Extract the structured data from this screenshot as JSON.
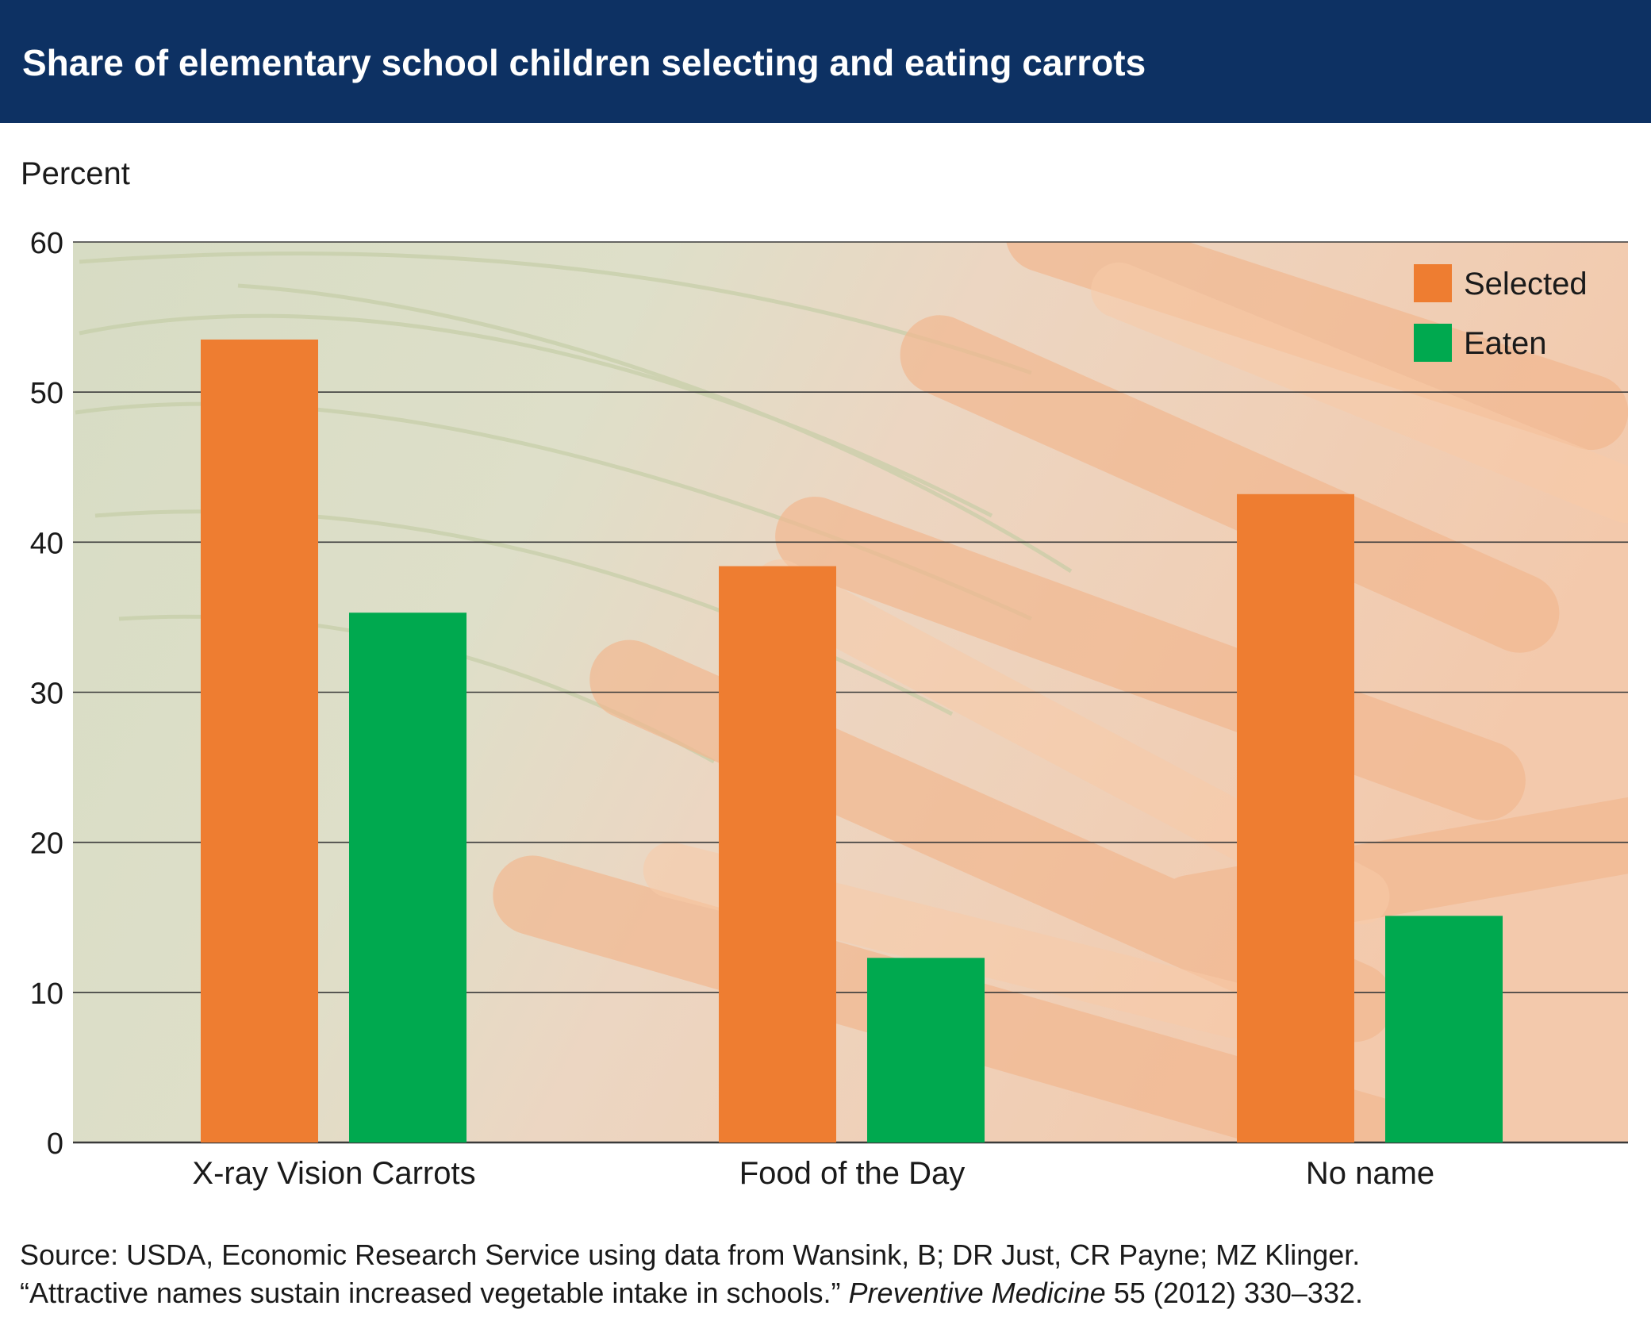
{
  "header": {
    "title": "Share of elementary school children selecting and eating carrots"
  },
  "chart_data": {
    "type": "bar",
    "title": "Share of elementary school children selecting and eating carrots",
    "ylabel": "Percent",
    "xlabel": "",
    "categories": [
      "X-ray Vision Carrots",
      "Food of the Day",
      "No name"
    ],
    "series": [
      {
        "name": "Selected",
        "color": "#ee7d31",
        "values": [
          53.5,
          38.4,
          43.2
        ]
      },
      {
        "name": "Eaten",
        "color": "#00a94f",
        "values": [
          35.3,
          12.3,
          15.1
        ]
      }
    ],
    "ylim": [
      0,
      60
    ],
    "yticks": [
      0,
      10,
      20,
      30,
      40,
      50,
      60
    ],
    "grid": true,
    "legend_position": "top-right",
    "background": "faded photograph of carrots"
  },
  "source": {
    "line1": "Source: USDA, Economic Research Service using data from Wansink, B; DR Just, CR Payne; MZ Klinger.",
    "line2_prefix": "“Attractive names sustain increased vegetable intake in schools.”",
    "line2_journal": "Preventive Medicine",
    "line2_suffix": " 55 (2012) 330–332."
  }
}
